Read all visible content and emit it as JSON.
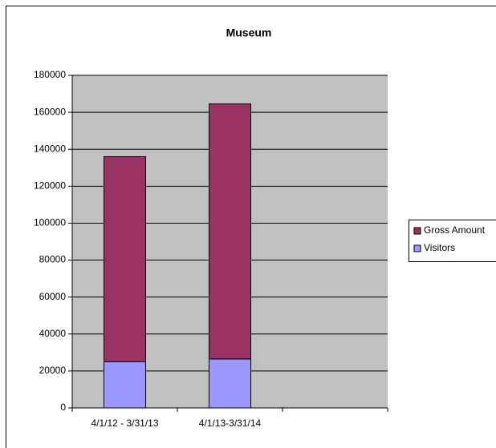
{
  "chart_data": {
    "type": "stacked_bar",
    "title": "Museum",
    "categories": [
      "4/1/12 - 3/31/13",
      "4/1/13-3/31/14",
      null
    ],
    "series": [
      {
        "name": "Visitors",
        "color": "#9999ff",
        "values": [
          25000,
          26500,
          null
        ]
      },
      {
        "name": "Gross Amount",
        "color": "#993366",
        "values": [
          111000,
          138000,
          null
        ]
      }
    ],
    "ylim": [
      0,
      180000
    ],
    "yticks": [
      0,
      20000,
      40000,
      60000,
      80000,
      100000,
      120000,
      140000,
      160000,
      180000
    ],
    "grid": true,
    "legend": "right",
    "plot_background": "#c0c0c0"
  }
}
